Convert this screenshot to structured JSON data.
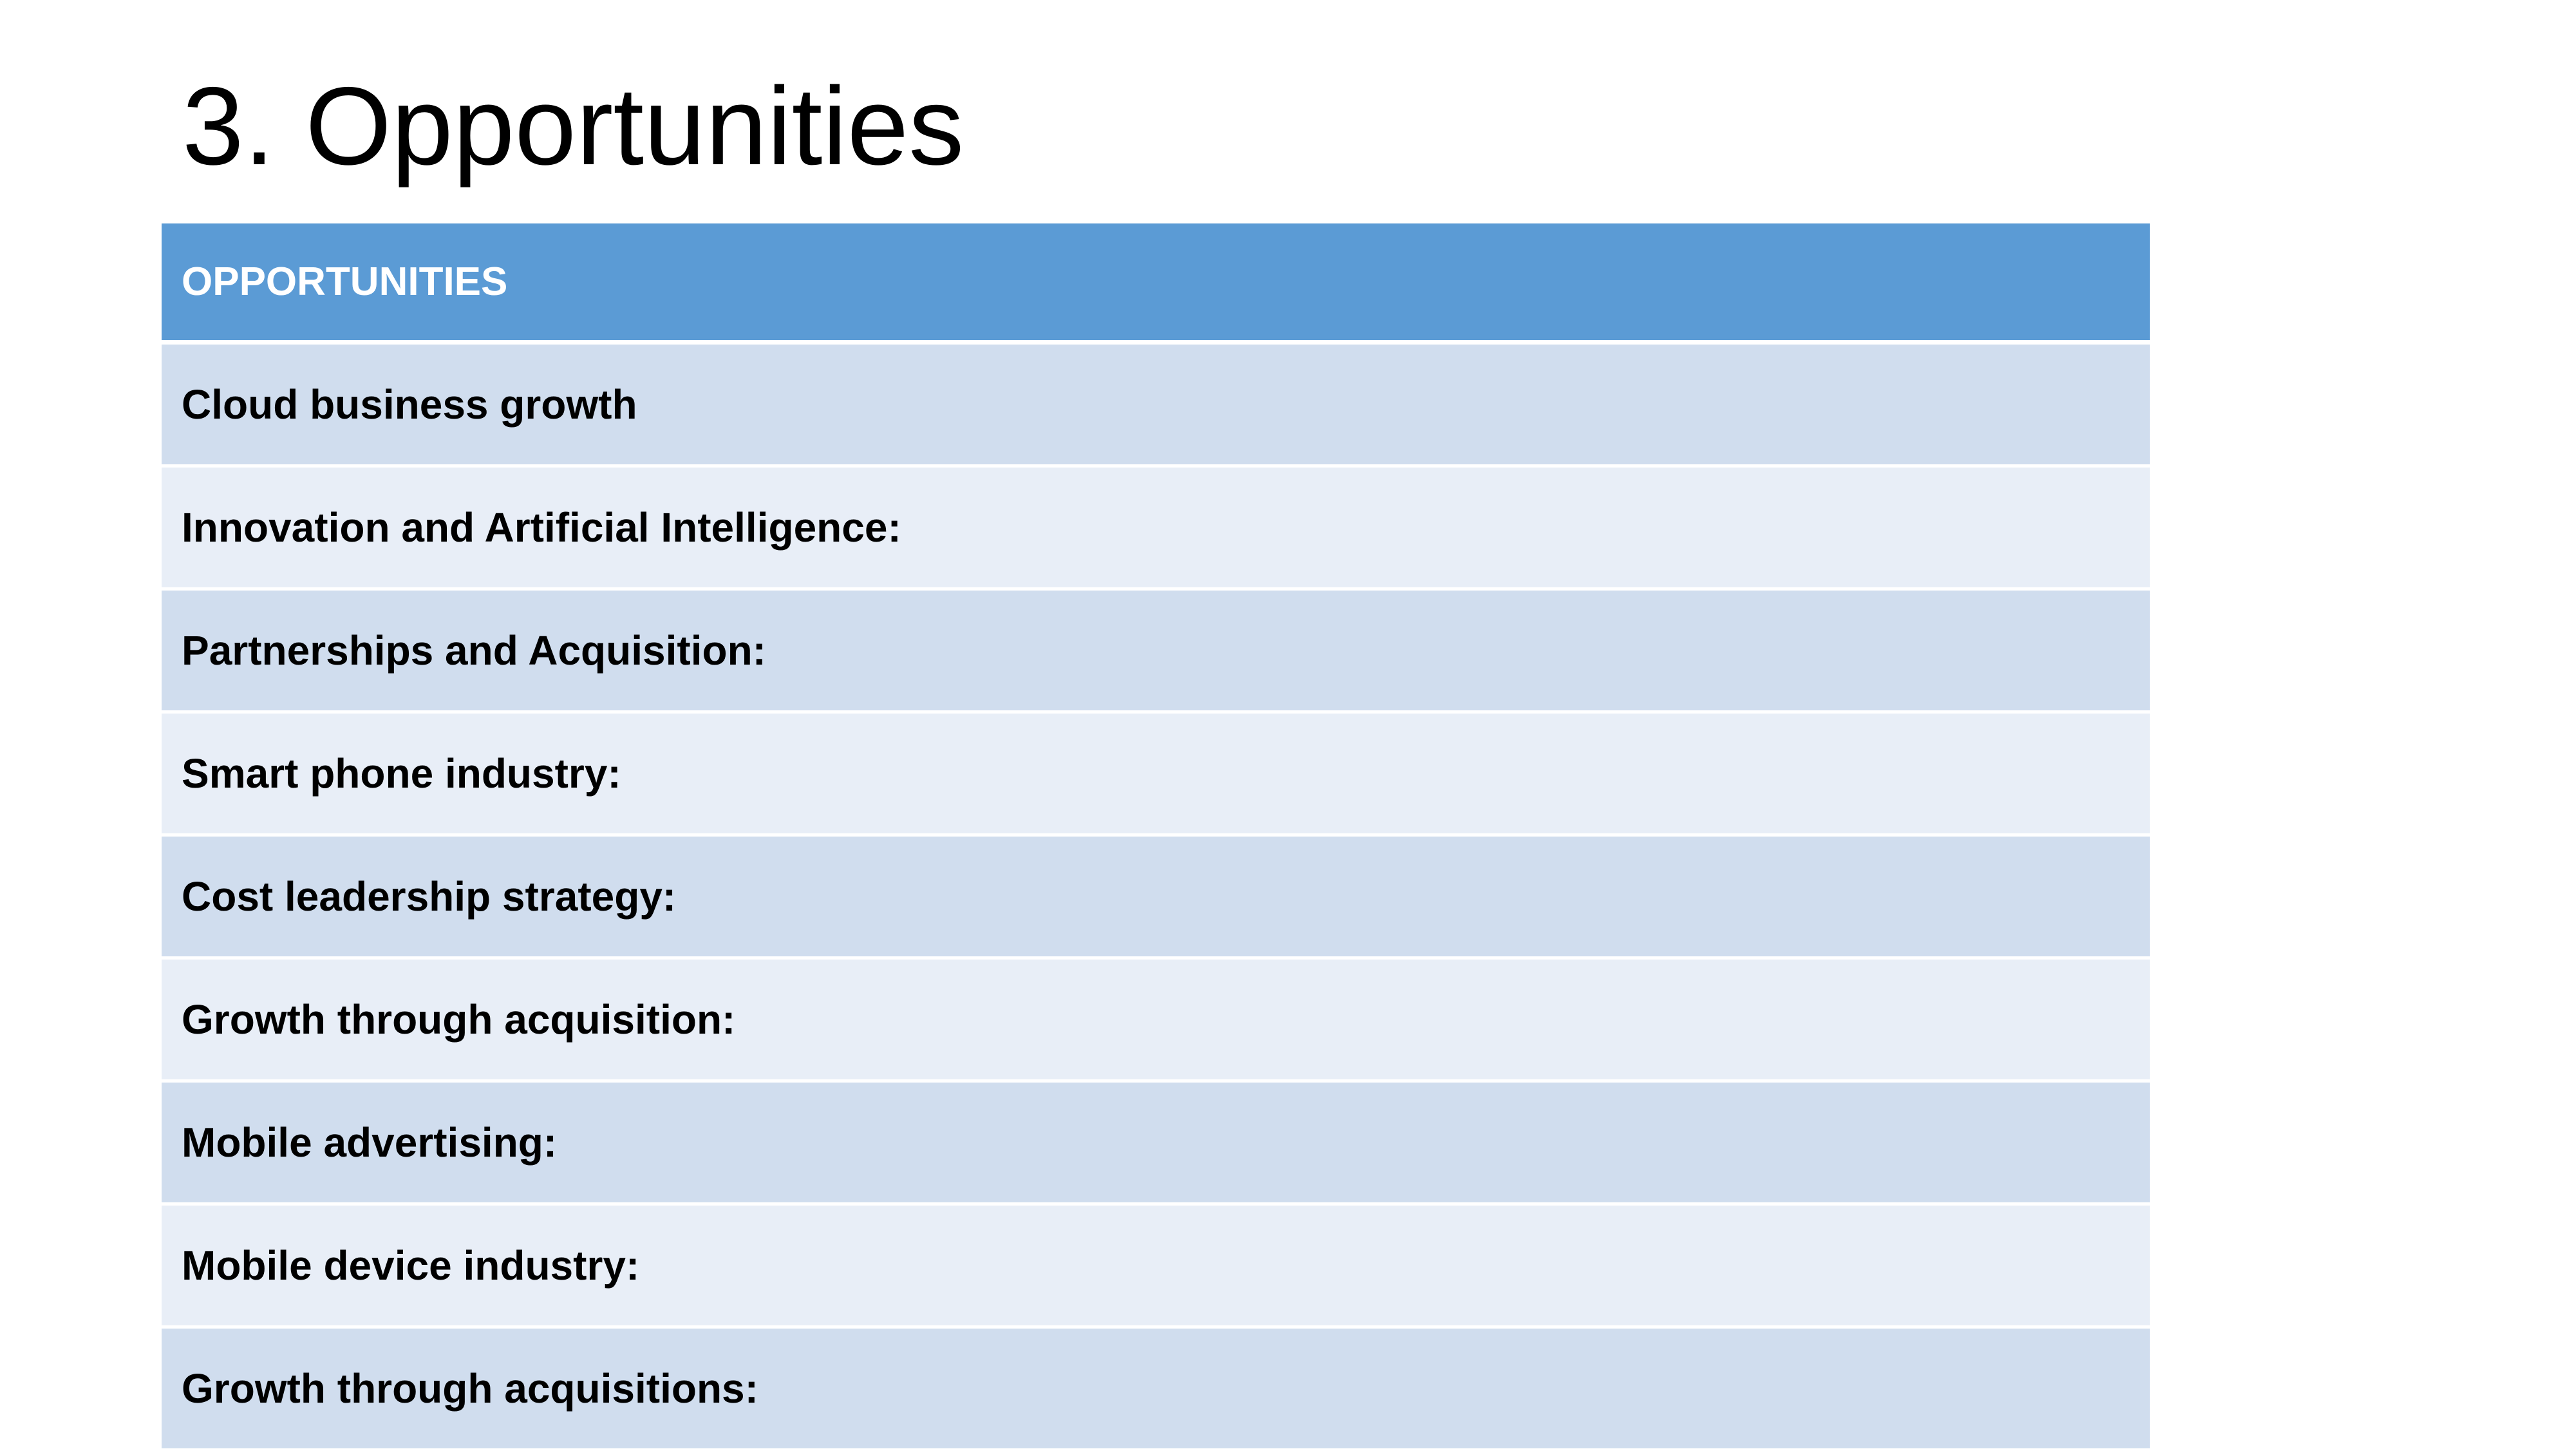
{
  "header": {
    "title": "3. Opportunities"
  },
  "table": {
    "header": "OPPORTUNITIES",
    "rows": [
      "Cloud business growth",
      "Innovation and Artificial Intelligence:",
      "Partnerships and Acquisition:",
      "Smart phone industry:",
      "Cost leadership strategy:",
      "Growth through acquisition:",
      "Mobile advertising:",
      "Mobile device industry:",
      "Growth through acquisitions:"
    ]
  }
}
